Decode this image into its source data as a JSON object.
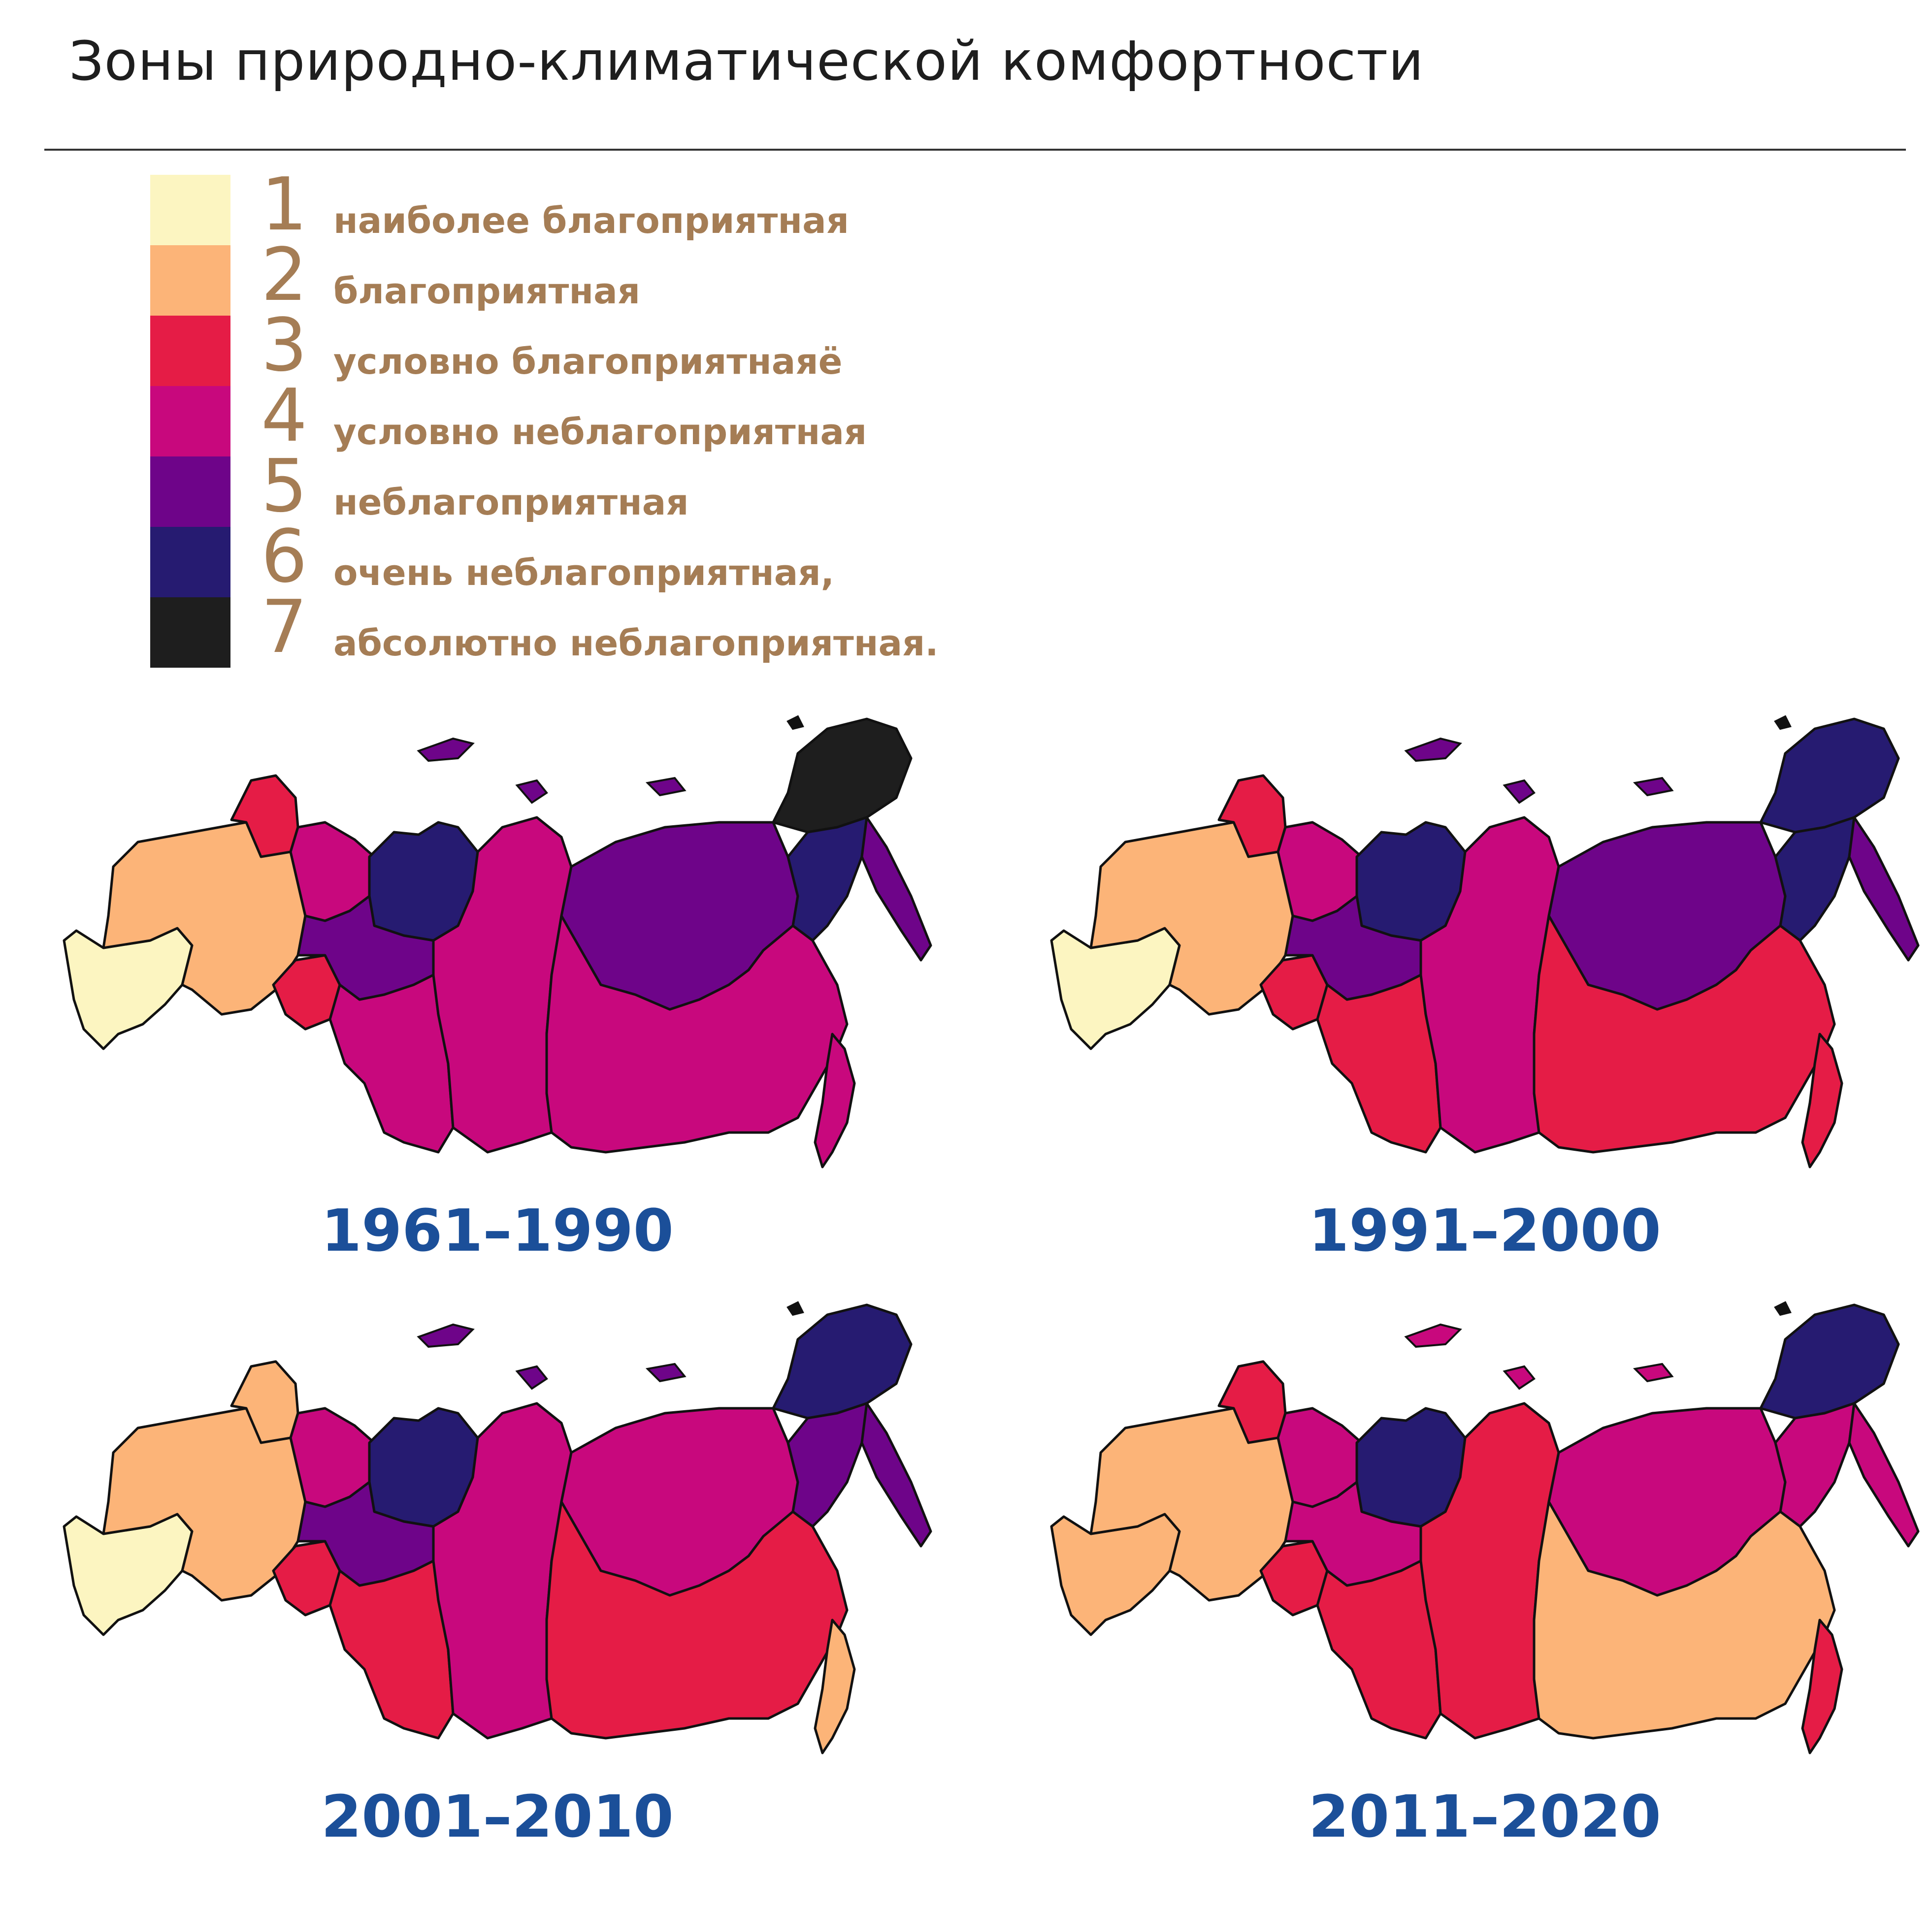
{
  "title": "Зоны природно-климатической комфортности",
  "legend": [
    {
      "num": "1",
      "label": "наиболее благоприятная",
      "color": "#fcf5c1"
    },
    {
      "num": "2",
      "label": "благоприятная",
      "color": "#fcb478"
    },
    {
      "num": "3",
      "label": "условно благоприятнаяё",
      "color": "#e51c46"
    },
    {
      "num": "4",
      "label": "условно неблагоприятная",
      "color": "#c8087d"
    },
    {
      "num": "5",
      "label": "неблагоприятная",
      "color": "#6e0489"
    },
    {
      "num": "6",
      "label": "очень неблагоприятная,",
      "color": "#261b71"
    },
    {
      "num": "7",
      "label": "абсолютно неблагоприятная.",
      "color": "#1e1e1e"
    }
  ],
  "panels": [
    {
      "period": "1961–1990",
      "zones": {
        "southwest": 1,
        "european": 2,
        "karelia": 3,
        "volga": 3,
        "north_urals": 4,
        "yamal": 6,
        "west_siberia": 5,
        "south_siberia": 4,
        "krasnoyarsk": 4,
        "yakutia": 5,
        "chukotka": 7,
        "magadan": 6,
        "kamchatka": 5,
        "far_east": 4,
        "sakhalin": 4
      }
    },
    {
      "period": "1991–2000",
      "zones": {
        "southwest": 1,
        "european": 2,
        "karelia": 3,
        "volga": 3,
        "north_urals": 4,
        "yamal": 6,
        "west_siberia": 5,
        "south_siberia": 3,
        "krasnoyarsk": 4,
        "yakutia": 5,
        "chukotka": 6,
        "magadan": 6,
        "kamchatka": 5,
        "far_east": 3,
        "sakhalin": 3
      }
    },
    {
      "period": "2001–2010",
      "zones": {
        "southwest": 1,
        "european": 2,
        "karelia": 2,
        "volga": 3,
        "north_urals": 4,
        "yamal": 6,
        "west_siberia": 5,
        "south_siberia": 3,
        "krasnoyarsk": 4,
        "yakutia": 4,
        "chukotka": 6,
        "magadan": 5,
        "kamchatka": 5,
        "far_east": 3,
        "sakhalin": 2
      }
    },
    {
      "period": "2011–2020",
      "zones": {
        "southwest": 2,
        "european": 2,
        "karelia": 3,
        "volga": 3,
        "north_urals": 4,
        "yamal": 6,
        "west_siberia": 4,
        "south_siberia": 3,
        "krasnoyarsk": 3,
        "yakutia": 4,
        "chukotka": 6,
        "magadan": 4,
        "kamchatka": 4,
        "far_east": 2,
        "sakhalin": 3
      }
    }
  ]
}
